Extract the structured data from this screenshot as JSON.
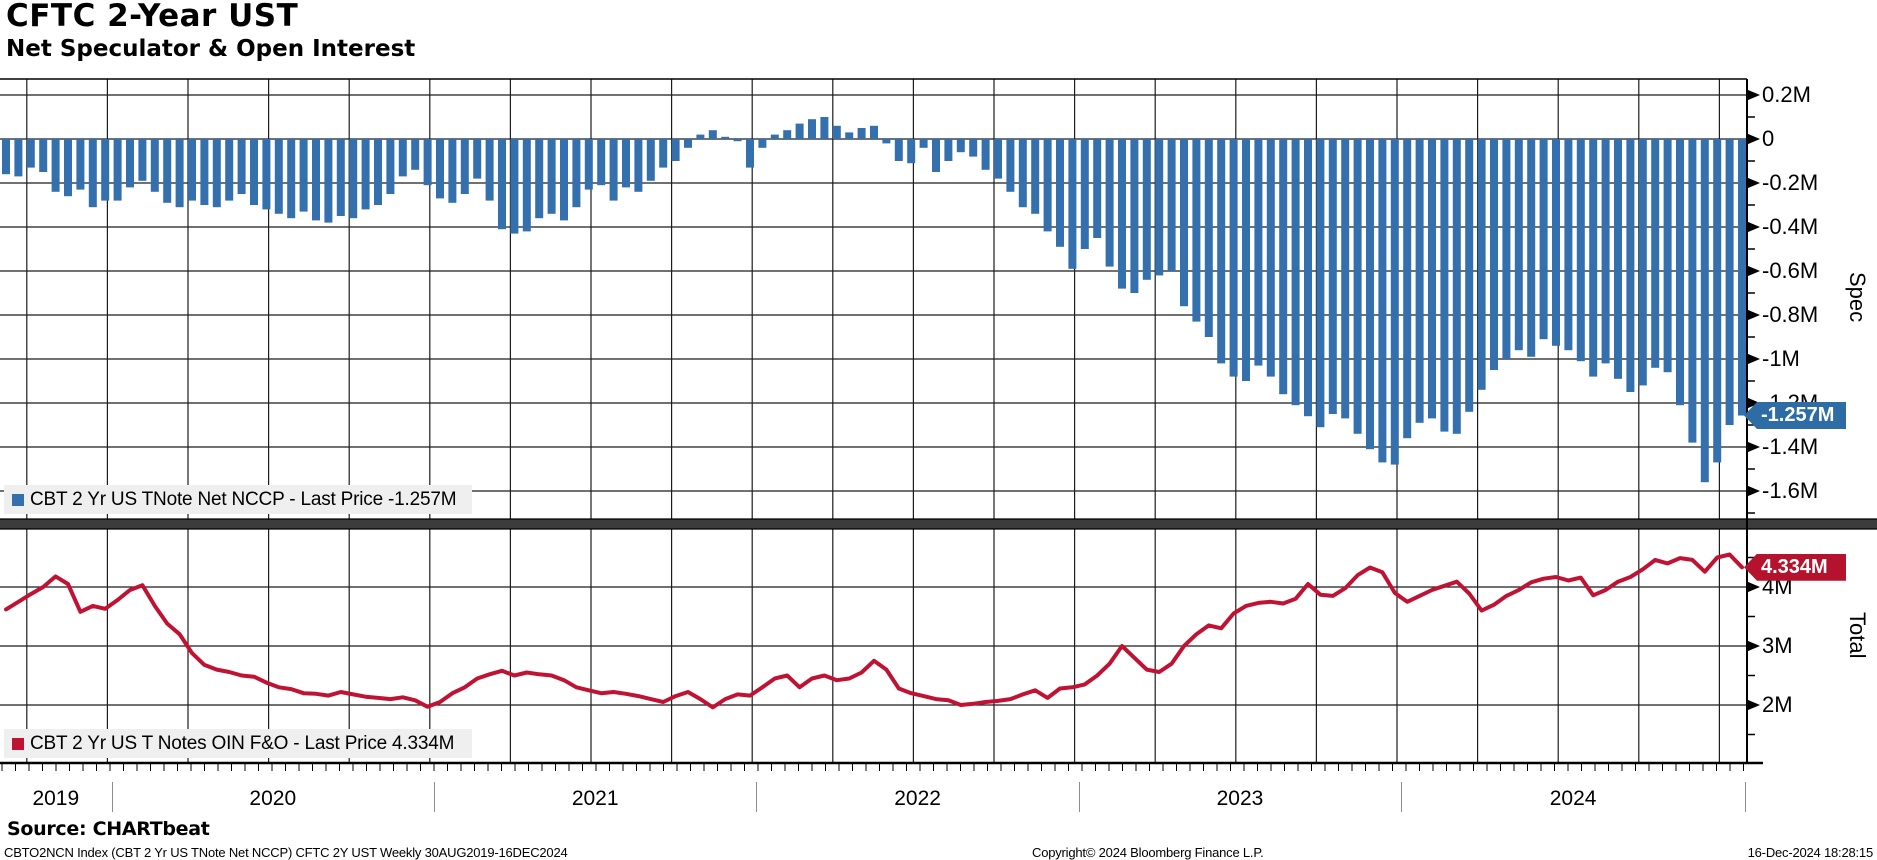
{
  "header": {
    "title": "CFTC 2-Year UST",
    "subtitle": "Net Speculator & Open Interest"
  },
  "colors": {
    "bar_blue": "#3470ad",
    "line_red": "#c01334",
    "badge_blue": "#2e6ca6",
    "badge_red": "#b5122e",
    "grid": "#1c1c1c",
    "axis": "#000000",
    "divider": "#3c3c3c",
    "legend_bg": "#efefef",
    "year_sep": "#8d8d8d"
  },
  "top_panel": {
    "axis_label": "Spec",
    "legend_text": "CBT 2 Yr US TNote Net NCCP - Last Price -1.257M",
    "badge_text": "-1.257M",
    "last_value": -1.257,
    "ticks": [
      {
        "v": 0.2,
        "label": "0.2M"
      },
      {
        "v": 0,
        "label": "0"
      },
      {
        "v": -0.2,
        "label": "-0.2M"
      },
      {
        "v": -0.4,
        "label": "-0.4M"
      },
      {
        "v": -0.6,
        "label": "-0.6M"
      },
      {
        "v": -0.8,
        "label": "-0.8M"
      },
      {
        "v": -1.0,
        "label": "-1M"
      },
      {
        "v": -1.2,
        "label": "-1.2M"
      },
      {
        "v": -1.4,
        "label": "-1.4M"
      },
      {
        "v": -1.6,
        "label": "-1.6M"
      }
    ]
  },
  "bottom_panel": {
    "axis_label": "Total",
    "legend_text": "CBT 2 Yr US T Notes OIN F&O - Last Price 4.334M",
    "badge_text": "4.334M",
    "last_value": 4.334,
    "ticks": [
      {
        "v": 4,
        "label": "4M"
      },
      {
        "v": 3,
        "label": "3M"
      },
      {
        "v": 2,
        "label": "2M"
      }
    ]
  },
  "x_axis": {
    "years": [
      {
        "label": "2019",
        "start_idx": 0
      },
      {
        "label": "2020",
        "start_idx": 9
      },
      {
        "label": "2021",
        "start_idx": 35
      },
      {
        "label": "2022",
        "start_idx": 61
      },
      {
        "label": "2023",
        "start_idx": 87
      },
      {
        "label": "2024",
        "start_idx": 113
      }
    ],
    "end_idx": 141
  },
  "source_line": "Source: CHARTbeat",
  "footer": {
    "left": "CBTO2NCN Index (CBT 2 Yr US TNote Net NCCP) CFTC 2Y UST  Weekly 30AUG2019-16DEC2024",
    "center": "Copyright© 2024 Bloomberg Finance L.P.",
    "right": "16-Dec-2024 18:28:15"
  },
  "chart_data": [
    {
      "type": "bar",
      "panel": "top",
      "name": "CBT 2 Yr US TNote Net NCCP",
      "units": "millions of contracts (net speculator position)",
      "x_range": "30AUG2019 to 16DEC2024, ~bi-weekly samples of weekly data",
      "ylim": [
        -1.74,
        0.27
      ],
      "grid": true,
      "legend_position": "bottom-left",
      "last_value": -1.257,
      "values": [
        -0.16,
        -0.17,
        -0.13,
        -0.15,
        -0.24,
        -0.26,
        -0.23,
        -0.31,
        -0.28,
        -0.28,
        -0.22,
        -0.19,
        -0.24,
        -0.29,
        -0.31,
        -0.28,
        -0.3,
        -0.31,
        -0.28,
        -0.25,
        -0.3,
        -0.32,
        -0.34,
        -0.36,
        -0.33,
        -0.37,
        -0.38,
        -0.35,
        -0.36,
        -0.32,
        -0.3,
        -0.25,
        -0.17,
        -0.14,
        -0.21,
        -0.27,
        -0.29,
        -0.25,
        -0.18,
        -0.28,
        -0.41,
        -0.43,
        -0.42,
        -0.36,
        -0.34,
        -0.37,
        -0.31,
        -0.23,
        -0.21,
        -0.28,
        -0.22,
        -0.24,
        -0.19,
        -0.13,
        -0.1,
        -0.04,
        0.02,
        0.04,
        0.01,
        -0.01,
        -0.13,
        -0.04,
        0.02,
        0.04,
        0.07,
        0.09,
        0.1,
        0.06,
        0.03,
        0.05,
        0.06,
        -0.02,
        -0.1,
        -0.11,
        -0.04,
        -0.15,
        -0.1,
        -0.06,
        -0.08,
        -0.14,
        -0.18,
        -0.24,
        -0.31,
        -0.34,
        -0.42,
        -0.49,
        -0.59,
        -0.5,
        -0.45,
        -0.58,
        -0.68,
        -0.7,
        -0.64,
        -0.62,
        -0.6,
        -0.76,
        -0.83,
        -0.9,
        -1.02,
        -1.08,
        -1.1,
        -1.03,
        -1.08,
        -1.16,
        -1.21,
        -1.26,
        -1.31,
        -1.25,
        -1.27,
        -1.34,
        -1.41,
        -1.47,
        -1.48,
        -1.36,
        -1.29,
        -1.27,
        -1.33,
        -1.34,
        -1.24,
        -1.14,
        -1.05,
        -1.0,
        -0.96,
        -0.99,
        -0.91,
        -0.94,
        -0.96,
        -1.01,
        -1.08,
        -1.02,
        -1.09,
        -1.15,
        -1.12,
        -1.04,
        -1.06,
        -1.21,
        -1.38,
        -1.56,
        -1.47,
        -1.3,
        -1.257
      ]
    },
    {
      "type": "line",
      "panel": "bottom",
      "name": "CBT 2 Yr US T Notes OIN F&O",
      "units": "millions of contracts (open interest)",
      "x_range": "30AUG2019 to 16DEC2024, ~bi-weekly samples of weekly data",
      "ylim": [
        1.0,
        5.0
      ],
      "grid": true,
      "legend_position": "bottom-left",
      "last_value": 4.334,
      "values": [
        3.62,
        3.75,
        3.88,
        4.0,
        4.18,
        4.05,
        3.58,
        3.68,
        3.63,
        3.78,
        3.95,
        4.03,
        3.68,
        3.38,
        3.2,
        2.88,
        2.68,
        2.6,
        2.56,
        2.5,
        2.48,
        2.38,
        2.3,
        2.27,
        2.2,
        2.19,
        2.16,
        2.22,
        2.18,
        2.14,
        2.12,
        2.1,
        2.13,
        2.08,
        1.97,
        2.05,
        2.2,
        2.3,
        2.45,
        2.52,
        2.58,
        2.5,
        2.55,
        2.52,
        2.5,
        2.42,
        2.3,
        2.25,
        2.2,
        2.22,
        2.19,
        2.15,
        2.1,
        2.05,
        2.15,
        2.22,
        2.1,
        1.96,
        2.1,
        2.18,
        2.16,
        2.3,
        2.45,
        2.5,
        2.3,
        2.45,
        2.5,
        2.42,
        2.45,
        2.55,
        2.75,
        2.6,
        2.28,
        2.2,
        2.15,
        2.1,
        2.08,
        2.0,
        2.02,
        2.05,
        2.07,
        2.1,
        2.18,
        2.25,
        2.12,
        2.28,
        2.3,
        2.35,
        2.5,
        2.7,
        3.0,
        2.8,
        2.6,
        2.56,
        2.7,
        3.0,
        3.2,
        3.35,
        3.3,
        3.55,
        3.68,
        3.73,
        3.75,
        3.72,
        3.8,
        4.05,
        3.87,
        3.85,
        3.98,
        4.2,
        4.33,
        4.25,
        3.9,
        3.75,
        3.85,
        3.95,
        4.02,
        4.09,
        3.89,
        3.6,
        3.7,
        3.85,
        3.95,
        4.08,
        4.14,
        4.17,
        4.11,
        4.16,
        3.86,
        3.95,
        4.09,
        4.17,
        4.3,
        4.46,
        4.4,
        4.49,
        4.46,
        4.26,
        4.5,
        4.55,
        4.334
      ]
    }
  ]
}
